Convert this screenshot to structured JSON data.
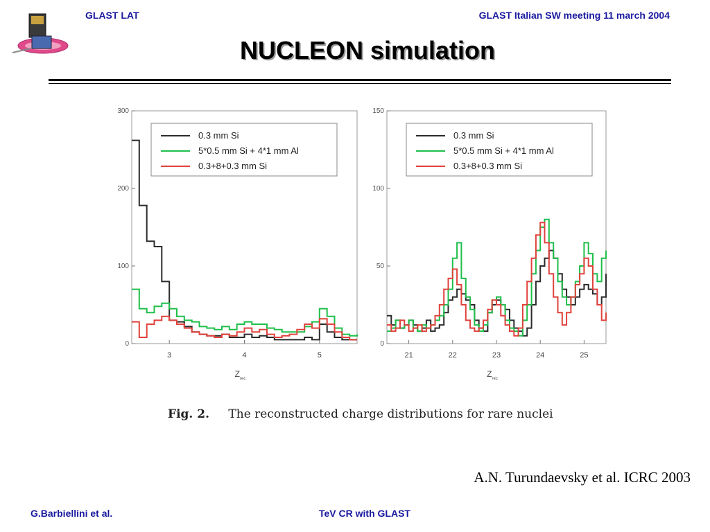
{
  "header": {
    "left": "GLAST LAT",
    "right": "GLAST Italian SW meeting 11 march 2004"
  },
  "title": "NUCLEON simulation",
  "caption": {
    "fig": "Fig. 2.",
    "text": "The reconstructed charge distributions for rare nuclei"
  },
  "citation": "A.N. Turundaevsky et al. ICRC 2003",
  "footer": {
    "left": "G.Barbiellini et al.",
    "center": "TeV CR with GLAST"
  },
  "colors": {
    "series_black": "#2b2b2b",
    "series_green": "#1fbf4a",
    "series_red": "#e0423c",
    "header_text": "#1a1aa0"
  },
  "logo_icon": "satellite-logo",
  "chart_data": [
    {
      "type": "line",
      "xlabel": "Z",
      "xlabel_sub": "rec",
      "xlim": [
        2.5,
        5.5
      ],
      "ylim": [
        0,
        300
      ],
      "xticks": [
        "3",
        "4",
        "5"
      ],
      "xtick_values": [
        3,
        4,
        5
      ],
      "yticks": [
        "0",
        "100",
        "200",
        "300"
      ],
      "ytick_values": [
        0,
        100,
        200,
        300
      ],
      "legend_position": "top-right",
      "series": [
        {
          "name": "0.3 mm Si",
          "color": "#2b2b2b",
          "x": [
            2.5,
            2.6,
            2.7,
            2.8,
            2.9,
            3.0,
            3.1,
            3.2,
            3.3,
            3.4,
            3.5,
            3.6,
            3.7,
            3.8,
            3.9,
            4.0,
            4.1,
            4.2,
            4.3,
            4.4,
            4.5,
            4.6,
            4.7,
            4.8,
            4.9,
            5.0,
            5.1,
            5.2,
            5.3,
            5.4,
            5.5
          ],
          "y": [
            262,
            178,
            132,
            125,
            80,
            30,
            28,
            22,
            15,
            12,
            10,
            10,
            12,
            8,
            8,
            12,
            8,
            10,
            8,
            5,
            5,
            5,
            5,
            8,
            5,
            25,
            15,
            8,
            5,
            5,
            5
          ]
        },
        {
          "name": "5*0.5 mm Si + 4*1 mm Al",
          "color": "#1fbf4a",
          "x": [
            2.5,
            2.6,
            2.7,
            2.8,
            2.9,
            3.0,
            3.1,
            3.2,
            3.3,
            3.4,
            3.5,
            3.6,
            3.7,
            3.8,
            3.9,
            4.0,
            4.1,
            4.2,
            4.3,
            4.4,
            4.5,
            4.6,
            4.7,
            4.8,
            4.9,
            5.0,
            5.1,
            5.2,
            5.3,
            5.4,
            5.5
          ],
          "y": [
            70,
            45,
            40,
            48,
            52,
            45,
            35,
            30,
            28,
            22,
            20,
            18,
            22,
            18,
            25,
            28,
            25,
            25,
            20,
            18,
            15,
            15,
            15,
            22,
            28,
            45,
            35,
            20,
            12,
            10,
            12
          ]
        },
        {
          "name": "0.3+8+0.3 mm Si",
          "color": "#e0423c",
          "x": [
            2.5,
            2.6,
            2.7,
            2.8,
            2.9,
            3.0,
            3.1,
            3.2,
            3.3,
            3.4,
            3.5,
            3.6,
            3.7,
            3.8,
            3.9,
            4.0,
            4.1,
            4.2,
            4.3,
            4.4,
            4.5,
            4.6,
            4.7,
            4.8,
            4.9,
            5.0,
            5.1,
            5.2,
            5.3,
            5.4,
            5.5
          ],
          "y": [
            28,
            8,
            25,
            30,
            35,
            30,
            25,
            20,
            15,
            12,
            10,
            8,
            12,
            10,
            15,
            20,
            15,
            18,
            12,
            8,
            10,
            12,
            18,
            25,
            20,
            32,
            25,
            15,
            8,
            5,
            5
          ]
        }
      ]
    },
    {
      "type": "line",
      "xlabel": "Z",
      "xlabel_sub": "rec",
      "xlim": [
        20.5,
        25.5
      ],
      "ylim": [
        0,
        150
      ],
      "xticks": [
        "21",
        "22",
        "23",
        "24",
        "25"
      ],
      "xtick_values": [
        21,
        22,
        23,
        24,
        25
      ],
      "yticks": [
        "0",
        "50",
        "100",
        "150"
      ],
      "ytick_values": [
        0,
        50,
        100,
        150
      ],
      "legend_position": "top-right",
      "series": [
        {
          "name": "0.3 mm Si",
          "color": "#2b2b2b",
          "x": [
            20.5,
            20.6,
            20.7,
            20.8,
            20.9,
            21.0,
            21.1,
            21.2,
            21.3,
            21.4,
            21.5,
            21.6,
            21.7,
            21.8,
            21.9,
            22.0,
            22.1,
            22.2,
            22.3,
            22.4,
            22.5,
            22.6,
            22.7,
            22.8,
            22.9,
            23.0,
            23.1,
            23.2,
            23.3,
            23.4,
            23.5,
            23.6,
            23.7,
            23.8,
            23.9,
            24.0,
            24.1,
            24.2,
            24.3,
            24.4,
            24.5,
            24.6,
            24.7,
            24.8,
            24.9,
            25.0,
            25.1,
            25.2,
            25.3,
            25.4,
            25.5
          ],
          "y": [
            18,
            12,
            15,
            10,
            12,
            15,
            12,
            8,
            10,
            15,
            8,
            10,
            12,
            20,
            28,
            30,
            35,
            32,
            28,
            25,
            15,
            10,
            8,
            20,
            25,
            28,
            25,
            22,
            15,
            10,
            8,
            5,
            10,
            25,
            40,
            50,
            55,
            60,
            55,
            45,
            35,
            30,
            25,
            30,
            35,
            38,
            35,
            32,
            25,
            30,
            45
          ]
        },
        {
          "name": "5*0.5 mm Si + 4*1 mm Al",
          "color": "#1fbf4a",
          "x": [
            20.5,
            20.6,
            20.7,
            20.8,
            20.9,
            21.0,
            21.1,
            21.2,
            21.3,
            21.4,
            21.5,
            21.6,
            21.7,
            21.8,
            21.9,
            22.0,
            22.1,
            22.2,
            22.3,
            22.4,
            22.5,
            22.6,
            22.7,
            22.8,
            22.9,
            23.0,
            23.1,
            23.2,
            23.3,
            23.4,
            23.5,
            23.6,
            23.7,
            23.8,
            23.9,
            24.0,
            24.1,
            24.2,
            24.3,
            24.4,
            24.5,
            24.6,
            24.7,
            24.8,
            24.9,
            25.0,
            25.1,
            25.2,
            25.3,
            25.4,
            25.5
          ],
          "y": [
            8,
            10,
            15,
            10,
            12,
            15,
            10,
            8,
            12,
            10,
            12,
            15,
            18,
            25,
            35,
            55,
            65,
            42,
            30,
            22,
            12,
            8,
            12,
            20,
            28,
            30,
            25,
            15,
            10,
            8,
            5,
            15,
            25,
            45,
            60,
            75,
            80,
            65,
            55,
            40,
            30,
            25,
            30,
            40,
            50,
            65,
            58,
            45,
            40,
            55,
            60
          ]
        },
        {
          "name": "0.3+8+0.3 mm Si",
          "color": "#e0423c",
          "x": [
            20.5,
            20.6,
            20.7,
            20.8,
            20.9,
            21.0,
            21.1,
            21.2,
            21.3,
            21.4,
            21.5,
            21.6,
            21.7,
            21.8,
            21.9,
            22.0,
            22.1,
            22.2,
            22.3,
            22.4,
            22.5,
            22.6,
            22.7,
            22.8,
            22.9,
            23.0,
            23.1,
            23.2,
            23.3,
            23.4,
            23.5,
            23.6,
            23.7,
            23.8,
            23.9,
            24.0,
            24.1,
            24.2,
            24.3,
            24.4,
            24.5,
            24.6,
            24.7,
            24.8,
            24.9,
            25.0,
            25.1,
            25.2,
            25.3,
            25.4,
            25.5
          ],
          "y": [
            12,
            8,
            10,
            15,
            12,
            8,
            10,
            12,
            8,
            10,
            12,
            18,
            25,
            35,
            42,
            48,
            38,
            25,
            15,
            10,
            8,
            10,
            15,
            22,
            28,
            25,
            18,
            12,
            8,
            5,
            10,
            25,
            40,
            55,
            70,
            78,
            65,
            45,
            30,
            20,
            12,
            20,
            30,
            38,
            45,
            55,
            50,
            35,
            25,
            15,
            20
          ]
        }
      ]
    }
  ]
}
